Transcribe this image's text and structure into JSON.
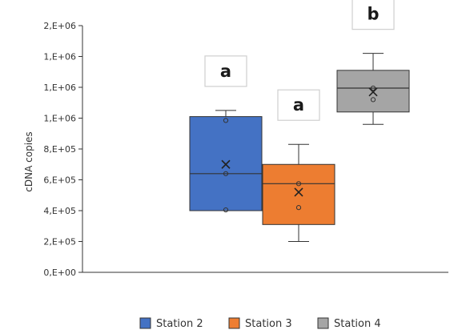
{
  "chart_data": {
    "type": "box",
    "ylabel": "cDNA copies",
    "y_tick_labels": [
      "0,E+00",
      "2,E+05",
      "4,E+05",
      "6,E+05",
      "8,E+05",
      "1,E+06",
      "1,E+06",
      "1,E+06",
      "2,E+06"
    ],
    "ylim": [
      0,
      1600000
    ],
    "y_tick_step": 200000,
    "grid": false,
    "legend_position": "bottom",
    "series": [
      {
        "name": "Station 2",
        "color": "#4472c4",
        "min": 400000,
        "q1": 400000,
        "median": 640000,
        "q3": 1010000,
        "max": 1050000,
        "mean": 700000,
        "points": [
          405000,
          640000,
          985000
        ],
        "group_letter": "a"
      },
      {
        "name": "Station 3",
        "color": "#ed7d31",
        "min": 200000,
        "q1": 310000,
        "median": 575000,
        "q3": 700000,
        "max": 830000,
        "mean": 520000,
        "points": [
          420000,
          575000
        ],
        "group_letter": "a"
      },
      {
        "name": "Station 4",
        "color": "#a5a5a5",
        "min": 960000,
        "q1": 1040000,
        "median": 1195000,
        "q3": 1310000,
        "max": 1420000,
        "mean": 1170000,
        "points": [
          1120000,
          1195000
        ],
        "group_letter": "b"
      }
    ]
  }
}
